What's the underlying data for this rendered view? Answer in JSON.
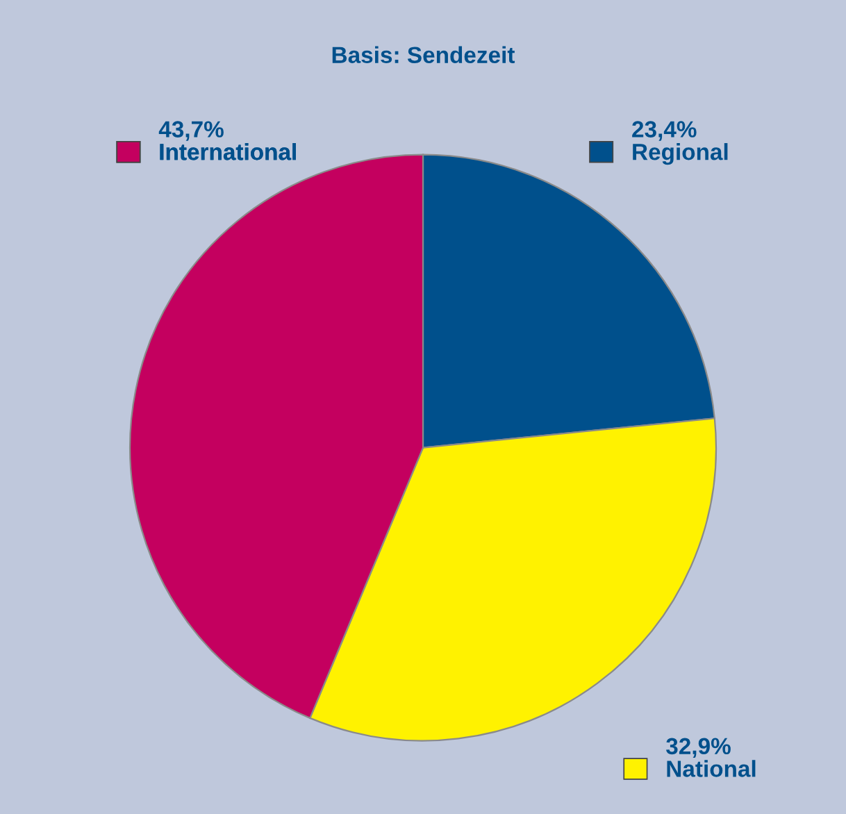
{
  "chart_data": {
    "type": "pie",
    "title": "Basis: Sendezeit",
    "categories": [
      "Regional",
      "National",
      "International"
    ],
    "values": [
      23.4,
      32.9,
      43.7
    ],
    "value_labels": [
      "23,4%",
      "32,9%",
      "43,7%"
    ],
    "colors": [
      "#00508c",
      "#fff200",
      "#c4005f"
    ],
    "legend": "bottom right"
  }
}
